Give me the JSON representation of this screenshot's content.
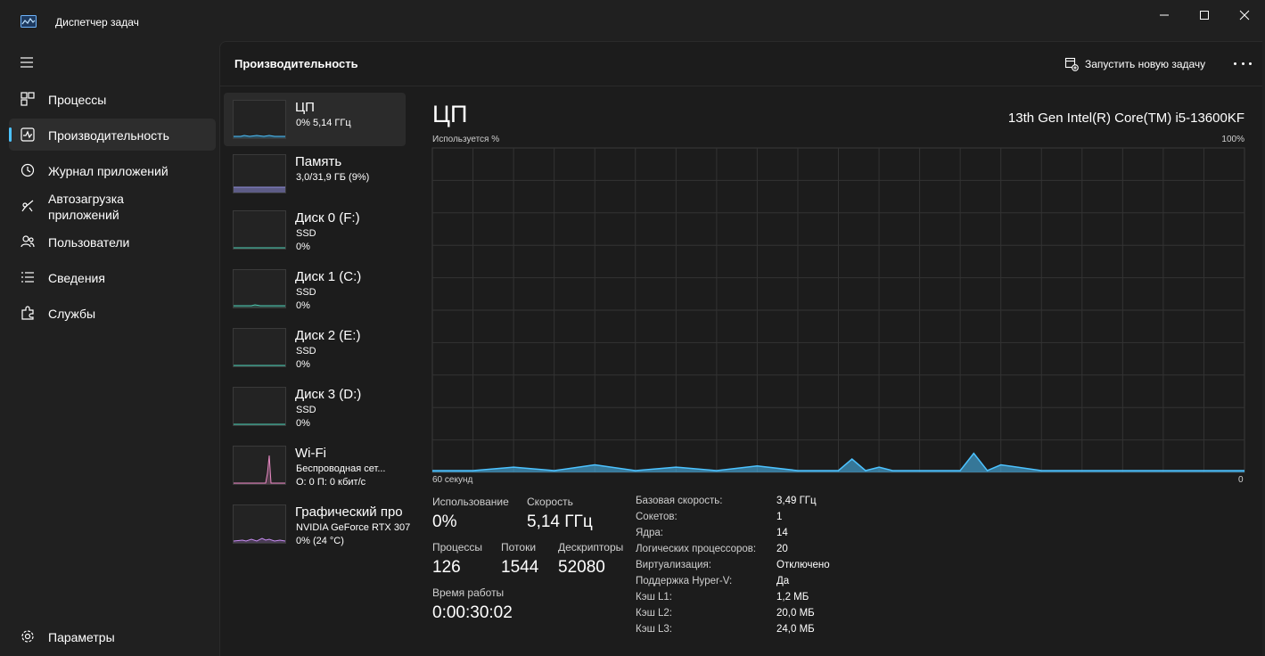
{
  "window": {
    "title": "Диспетчер задач",
    "accent": "#4cc2ff"
  },
  "sidebar": {
    "items": [
      {
        "label": "Процессы",
        "icon": "processes-grid-icon"
      },
      {
        "label": "Производительность",
        "icon": "performance-icon",
        "active": true
      },
      {
        "label": "Журнал приложений",
        "icon": "history-icon"
      },
      {
        "label": "Автозагрузка приложений",
        "icon": "startup-icon"
      },
      {
        "label": "Пользователи",
        "icon": "users-icon"
      },
      {
        "label": "Сведения",
        "icon": "details-list-icon"
      },
      {
        "label": "Службы",
        "icon": "services-puzzle-icon"
      }
    ],
    "settings_label": "Параметры"
  },
  "header": {
    "title": "Производительность",
    "run_task_label": "Запустить новую задачу"
  },
  "resources": [
    {
      "name": "ЦП",
      "line1": "0%  5,14 ГГц",
      "line2": "",
      "color": "#4cc2ff"
    },
    {
      "name": "Память",
      "line1": "3,0/31,9 ГБ (9%)",
      "line2": "",
      "color": "#8e8cd8"
    },
    {
      "name": "Диск 0 (F:)",
      "line1": "SSD",
      "line2": "0%",
      "color": "#4ec9b0"
    },
    {
      "name": "Диск 1 (C:)",
      "line1": "SSD",
      "line2": "0%",
      "color": "#4ec9b0"
    },
    {
      "name": "Диск 2 (E:)",
      "line1": "SSD",
      "line2": "0%",
      "color": "#4ec9b0"
    },
    {
      "name": "Диск 3 (D:)",
      "line1": "SSD",
      "line2": "0%",
      "color": "#4ec9b0"
    },
    {
      "name": "Wi-Fi",
      "line1": "Беспроводная сет...",
      "line2": "О: 0 П: 0 кбит/с",
      "color": "#e88ac4"
    },
    {
      "name": "Графический про",
      "line1": "NVIDIA GeForce RTX 307",
      "line2": "0% (24 °C)",
      "color": "#c58af0"
    }
  ],
  "detail": {
    "title": "ЦП",
    "model": "13th Gen Intel(R) Core(TM) i5-13600KF",
    "graph_label": "Используется %",
    "graph_max": "100%",
    "graph_time": "60 секунд",
    "graph_zero": "0",
    "usage_label": "Использование",
    "usage_value": "0%",
    "speed_label": "Скорость",
    "speed_value": "5,14 ГГц",
    "processes_label": "Процессы",
    "processes_value": "126",
    "threads_label": "Потоки",
    "threads_value": "1544",
    "handles_label": "Дескрипторы",
    "handles_value": "52080",
    "uptime_label": "Время работы",
    "uptime_value": "0:00:30:02",
    "specs": [
      {
        "key": "Базовая скорость:",
        "value": "3,49 ГГц"
      },
      {
        "key": "Сокетов:",
        "value": "1"
      },
      {
        "key": "Ядра:",
        "value": "14"
      },
      {
        "key": "Логических процессоров:",
        "value": "20"
      },
      {
        "key": "Виртуализация:",
        "value": "Отключено"
      },
      {
        "key": "Поддержка Hyper-V:",
        "value": "Да"
      },
      {
        "key": "Кэш L1:",
        "value": "1,2 МБ"
      },
      {
        "key": "Кэш L2:",
        "value": "20,0 МБ"
      },
      {
        "key": "Кэш L3:",
        "value": "24,0 МБ"
      }
    ]
  },
  "chart_data": {
    "type": "area",
    "x": [
      60,
      57,
      54,
      51,
      48,
      45,
      42,
      39,
      36,
      33,
      30,
      29,
      28,
      27,
      26,
      24,
      21,
      20,
      19,
      18,
      15,
      12,
      9,
      6,
      3,
      0
    ],
    "values": [
      0,
      0,
      0.3,
      0,
      0.5,
      0,
      0.3,
      0,
      0.4,
      0,
      0,
      1,
      0,
      0.3,
      0,
      0,
      0,
      1.5,
      0,
      0.5,
      0,
      0,
      0,
      0,
      0,
      0
    ],
    "ylim": [
      0,
      100
    ],
    "xlim": [
      60,
      0
    ],
    "grid": true,
    "color": "#4cc2ff"
  }
}
